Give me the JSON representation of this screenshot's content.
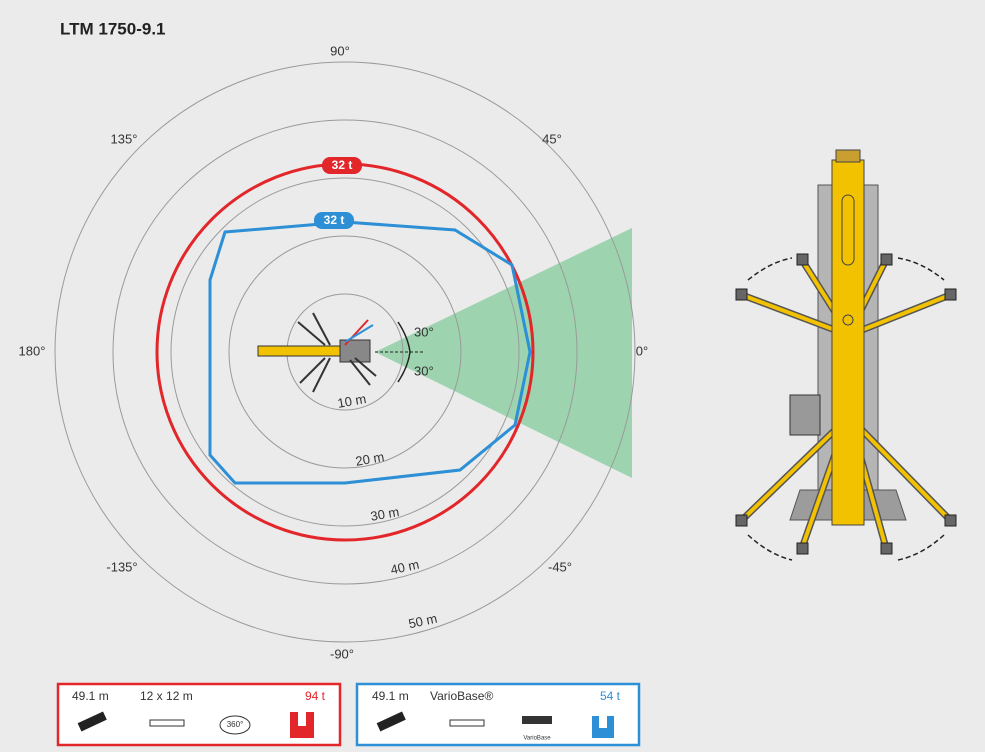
{
  "title": "LTM 1750-9.1",
  "angle_labels": [
    "90°",
    "45°",
    "135°",
    "180°",
    "0°",
    "-135°",
    "-45°",
    "-90°"
  ],
  "ring_labels": [
    "10 m",
    "20 m",
    "30 m",
    "40 m",
    "50 m"
  ],
  "sector_labels": [
    "30°",
    "30°"
  ],
  "contours": [
    {
      "label": "32 t"
    },
    {
      "label": "32 t"
    }
  ],
  "configs": [
    {
      "boom": "49.1 m",
      "support": "12 x 12 m",
      "slewing": "360°",
      "counterweight": "94 t"
    },
    {
      "boom": "49.1 m",
      "support": "VarioBase®",
      "base_icon": "VarioBase",
      "counterweight": "54 t"
    }
  ]
}
